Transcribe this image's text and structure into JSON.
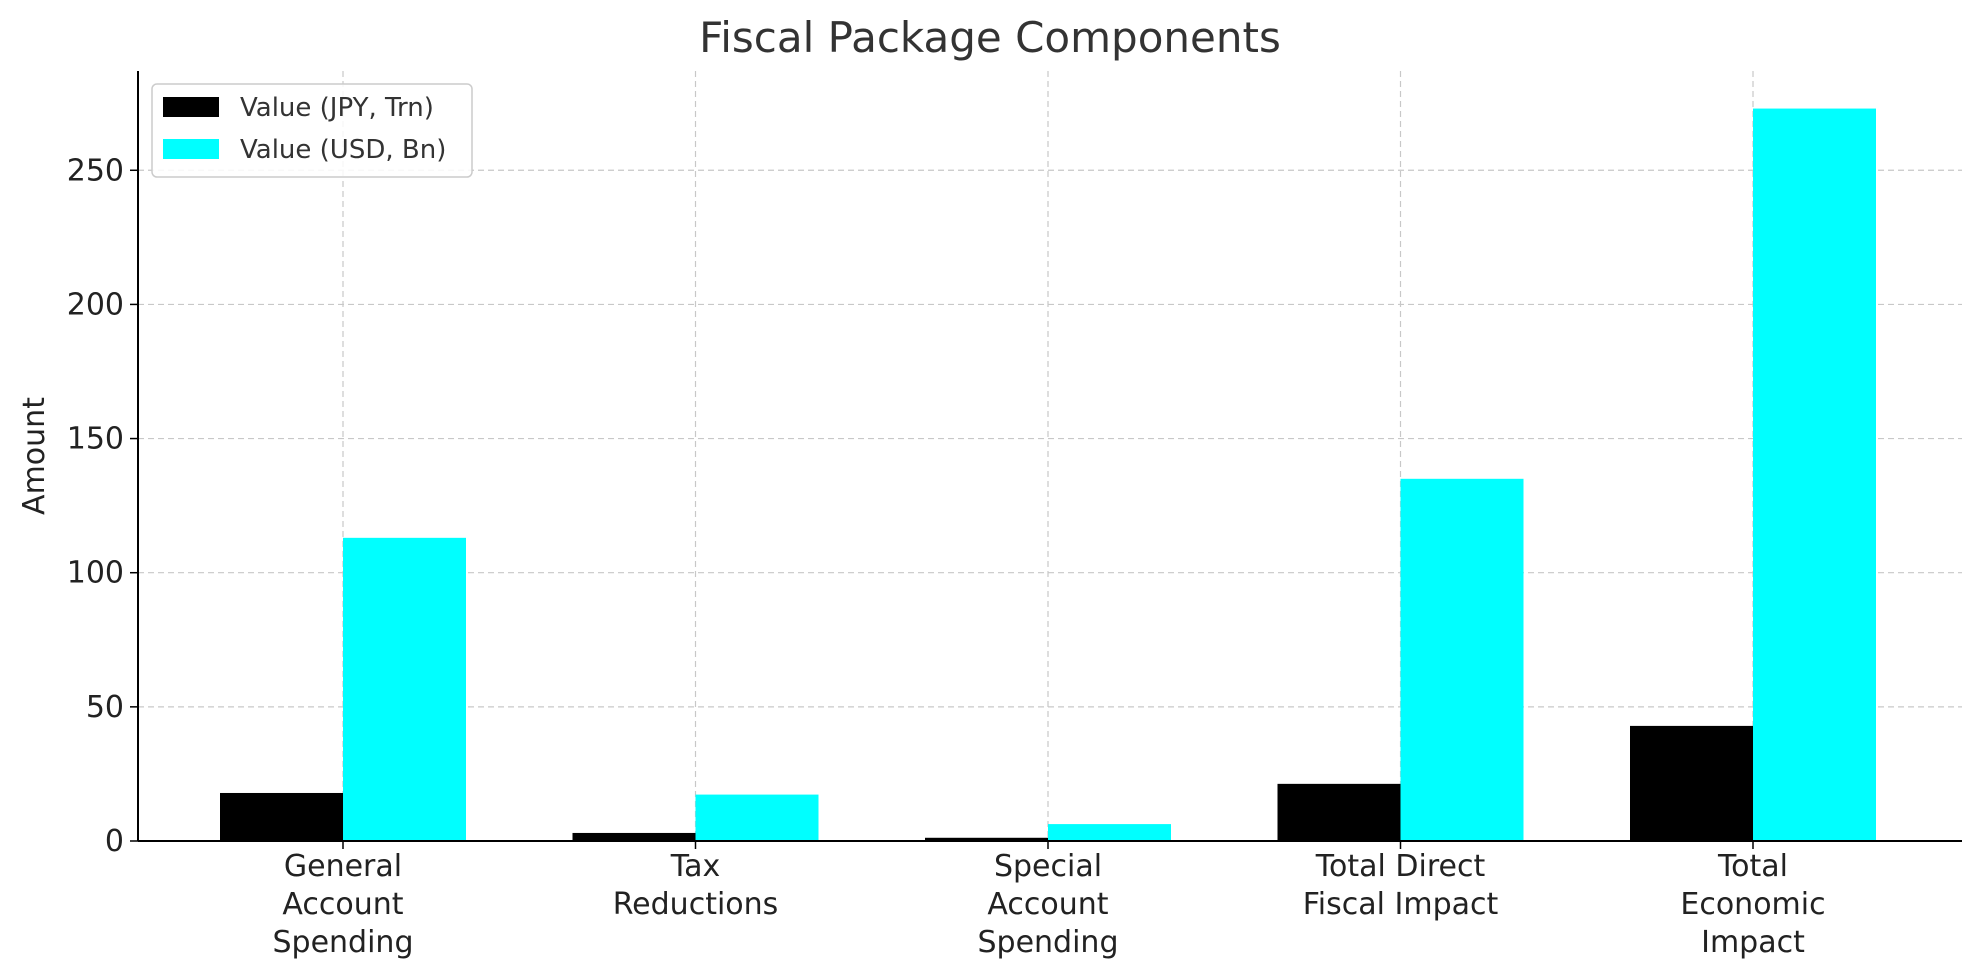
{
  "chart_data": {
    "type": "bar",
    "title": "Fiscal Package Components",
    "xlabel": "",
    "ylabel": "Amount",
    "categories": [
      [
        "General",
        "Account",
        "Spending"
      ],
      [
        "Tax",
        "Reductions"
      ],
      [
        "Special",
        "Account",
        "Spending"
      ],
      [
        "Total Direct",
        "Fiscal Impact"
      ],
      [
        "Total",
        "Economic",
        "Impact"
      ]
    ],
    "series": [
      {
        "name": "Value (JPY, Trn)",
        "color": "#000000",
        "values": [
          17.9,
          3.0,
          1.2,
          21.3,
          42.9
        ]
      },
      {
        "name": "Value (USD, Bn)",
        "color": "#00ffff",
        "values": [
          113.0,
          17.3,
          6.3,
          135.0,
          273.0
        ]
      }
    ],
    "ylim": [
      0,
      287
    ],
    "yticks": [
      0,
      50,
      100,
      150,
      200,
      250
    ],
    "grid": true,
    "legend_position": "top-left"
  }
}
